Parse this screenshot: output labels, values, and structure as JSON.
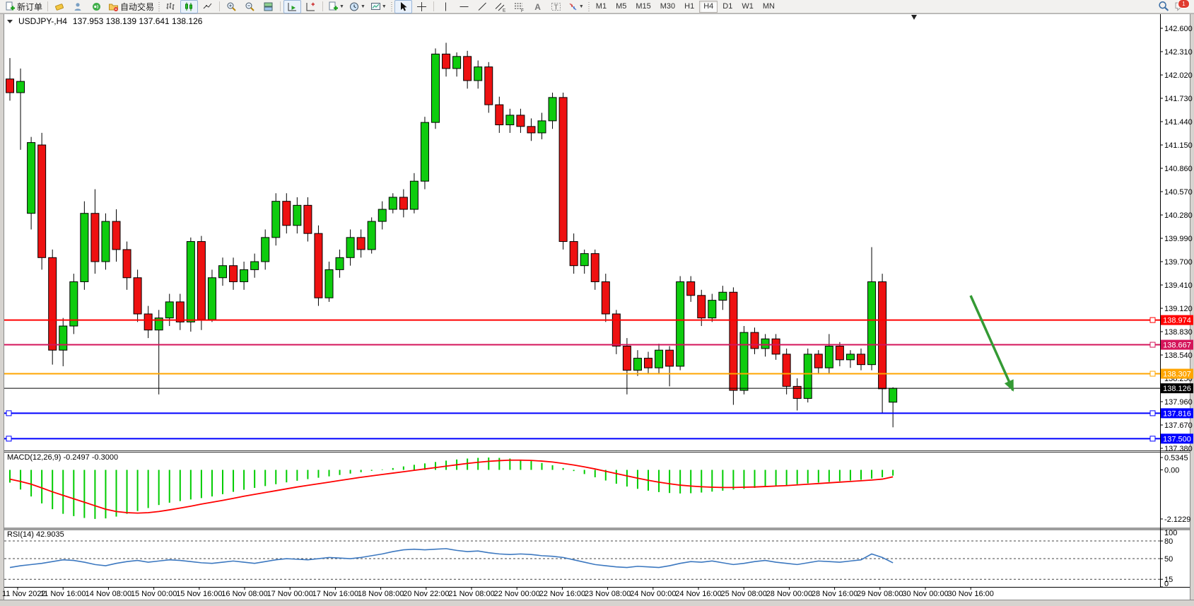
{
  "toolbar": {
    "new_order_label": "新订单",
    "auto_trading_label": "自动交易",
    "timeframes": [
      "M1",
      "M5",
      "M15",
      "M30",
      "H1",
      "H4",
      "D1",
      "W1",
      "MN"
    ],
    "active_timeframe": "H4",
    "notification_count": "1",
    "channel_tool_tag": "E",
    "fibonacci_tool_tag": "F",
    "text_tool_label": "A",
    "label_tool_label": "T"
  },
  "chart": {
    "symbol_period": "USDJPY-,H4",
    "ohlc": "137.953 138.139 137.641 138.126",
    "macd_label": "MACD(12,26,9) -0.2497 -0.3000",
    "rsi_label": "RSI(14) 42.9035"
  },
  "chart_data": {
    "type": "candlestick",
    "symbol": "USDJPY-",
    "timeframe": "H4",
    "visible_price_range": [
      137.38,
      142.6
    ],
    "price_axis_ticks": [
      "142.600",
      "142.310",
      "142.020",
      "141.730",
      "141.440",
      "141.150",
      "140.860",
      "140.570",
      "140.280",
      "139.990",
      "139.700",
      "139.410",
      "139.120",
      "138.830",
      "138.540",
      "138.250",
      "137.960",
      "137.670",
      "137.380"
    ],
    "time_axis_labels": [
      "11 Nov 2022",
      "11 Nov 16:00",
      "14 Nov 08:00",
      "15 Nov 00:00",
      "15 Nov 16:00",
      "16 Nov 08:00",
      "17 Nov 00:00",
      "17 Nov 16:00",
      "18 Nov 08:00",
      "20 Nov 22:00",
      "21 Nov 08:00",
      "22 Nov 00:00",
      "22 Nov 16:00",
      "23 Nov 08:00",
      "24 Nov 00:00",
      "24 Nov 16:00",
      "25 Nov 08:00",
      "28 Nov 00:00",
      "28 Nov 16:00",
      "29 Nov 08:00",
      "30 Nov 00:00",
      "30 Nov 16:00"
    ],
    "candles": [
      [
        141.97,
        142.23,
        141.7,
        141.8
      ],
      [
        141.8,
        142.1,
        141.09,
        141.94
      ],
      [
        140.3,
        141.25,
        140.1,
        141.18
      ],
      [
        141.15,
        141.3,
        139.6,
        139.75
      ],
      [
        139.75,
        139.85,
        138.42,
        138.6
      ],
      [
        138.6,
        139.0,
        138.4,
        138.9
      ],
      [
        138.9,
        139.55,
        138.8,
        139.45
      ],
      [
        139.45,
        140.45,
        139.35,
        140.3
      ],
      [
        140.3,
        140.6,
        139.55,
        139.7
      ],
      [
        139.7,
        140.3,
        139.6,
        140.2
      ],
      [
        140.2,
        140.35,
        139.7,
        139.85
      ],
      [
        139.85,
        139.95,
        139.35,
        139.5
      ],
      [
        139.5,
        139.6,
        138.95,
        139.05
      ],
      [
        139.05,
        139.15,
        138.75,
        138.85
      ],
      [
        138.85,
        139.1,
        138.05,
        139.0
      ],
      [
        139.0,
        139.3,
        138.9,
        139.2
      ],
      [
        139.2,
        139.3,
        138.85,
        138.95
      ],
      [
        138.95,
        140.0,
        138.83,
        139.95
      ],
      [
        139.95,
        140.02,
        138.85,
        138.98
      ],
      [
        138.98,
        139.6,
        138.95,
        139.5
      ],
      [
        139.5,
        139.75,
        139.4,
        139.65
      ],
      [
        139.65,
        139.75,
        139.35,
        139.45
      ],
      [
        139.45,
        139.7,
        139.35,
        139.6
      ],
      [
        139.6,
        139.8,
        139.5,
        139.7
      ],
      [
        139.7,
        140.1,
        139.6,
        140.0
      ],
      [
        140.0,
        140.55,
        139.9,
        140.45
      ],
      [
        140.45,
        140.55,
        140.05,
        140.15
      ],
      [
        140.15,
        140.5,
        140.05,
        140.4
      ],
      [
        140.4,
        140.5,
        139.95,
        140.05
      ],
      [
        140.05,
        140.15,
        139.15,
        139.25
      ],
      [
        139.25,
        139.7,
        139.2,
        139.6
      ],
      [
        139.6,
        139.85,
        139.5,
        139.75
      ],
      [
        139.75,
        140.1,
        139.65,
        140.0
      ],
      [
        140.0,
        140.1,
        139.75,
        139.85
      ],
      [
        139.85,
        140.25,
        139.8,
        140.2
      ],
      [
        140.2,
        140.45,
        140.1,
        140.35
      ],
      [
        140.35,
        140.55,
        140.3,
        140.5
      ],
      [
        140.5,
        140.6,
        140.25,
        140.35
      ],
      [
        140.35,
        140.8,
        140.3,
        140.7
      ],
      [
        140.7,
        141.5,
        140.6,
        141.43
      ],
      [
        141.43,
        142.35,
        141.35,
        142.28
      ],
      [
        142.28,
        142.42,
        142.0,
        142.1
      ],
      [
        142.1,
        142.3,
        142.0,
        142.25
      ],
      [
        142.25,
        142.32,
        141.85,
        141.95
      ],
      [
        141.95,
        142.2,
        141.85,
        142.12
      ],
      [
        142.12,
        142.18,
        141.55,
        141.65
      ],
      [
        141.65,
        141.75,
        141.3,
        141.4
      ],
      [
        141.4,
        141.6,
        141.3,
        141.52
      ],
      [
        141.52,
        141.6,
        141.3,
        141.38
      ],
      [
        141.38,
        141.48,
        141.2,
        141.3
      ],
      [
        141.3,
        141.55,
        141.22,
        141.45
      ],
      [
        141.45,
        141.8,
        141.35,
        141.74
      ],
      [
        141.74,
        141.8,
        139.85,
        139.95
      ],
      [
        139.95,
        140.05,
        139.55,
        139.65
      ],
      [
        139.65,
        139.85,
        139.55,
        139.8
      ],
      [
        139.8,
        139.85,
        139.35,
        139.45
      ],
      [
        139.45,
        139.55,
        138.95,
        139.05
      ],
      [
        139.05,
        139.1,
        138.55,
        138.65
      ],
      [
        138.65,
        138.75,
        138.05,
        138.35
      ],
      [
        138.35,
        138.6,
        138.28,
        138.5
      ],
      [
        138.5,
        138.58,
        138.3,
        138.38
      ],
      [
        138.38,
        138.68,
        138.3,
        138.6
      ],
      [
        138.6,
        138.65,
        138.15,
        138.4
      ],
      [
        138.4,
        139.52,
        138.35,
        139.45
      ],
      [
        139.45,
        139.52,
        139.2,
        139.28
      ],
      [
        139.28,
        139.35,
        138.9,
        139.0
      ],
      [
        139.0,
        139.3,
        138.95,
        139.22
      ],
      [
        139.22,
        139.4,
        139.1,
        139.32
      ],
      [
        139.32,
        139.38,
        137.92,
        138.1
      ],
      [
        138.1,
        138.9,
        138.05,
        138.82
      ],
      [
        138.82,
        138.88,
        138.55,
        138.62
      ],
      [
        138.62,
        138.8,
        138.52,
        138.74
      ],
      [
        138.74,
        138.8,
        138.48,
        138.55
      ],
      [
        138.55,
        138.62,
        138.05,
        138.15
      ],
      [
        138.15,
        138.25,
        137.85,
        138.0
      ],
      [
        138.0,
        138.62,
        137.95,
        138.55
      ],
      [
        138.55,
        138.6,
        138.3,
        138.38
      ],
      [
        138.38,
        138.8,
        138.3,
        138.65
      ],
      [
        138.65,
        138.7,
        138.4,
        138.48
      ],
      [
        138.48,
        138.6,
        138.38,
        138.55
      ],
      [
        138.55,
        138.62,
        138.35,
        138.42
      ],
      [
        138.42,
        139.88,
        138.35,
        139.45
      ],
      [
        139.45,
        139.55,
        137.82,
        138.12
      ],
      [
        137.953,
        138.139,
        137.641,
        138.126
      ]
    ],
    "price_lines": [
      {
        "price": "138.974",
        "value": 138.974,
        "color": "#ff0000",
        "style": "level"
      },
      {
        "price": "138.667",
        "value": 138.667,
        "color": "#d4145a",
        "style": "level"
      },
      {
        "price": "138.307",
        "value": 138.307,
        "color": "#ffa500",
        "style": "level"
      },
      {
        "price": "138.126",
        "value": 138.126,
        "color": "#000000",
        "style": "current"
      },
      {
        "price": "137.816",
        "value": 137.816,
        "color": "#0000ff",
        "style": "level"
      },
      {
        "price": "137.500",
        "value": 137.5,
        "color": "#0000ff",
        "style": "level"
      }
    ],
    "colors": {
      "bull": "#0ecc0e",
      "bear": "#ee1111",
      "wick": "#000000",
      "macd_hist": "#00cc00",
      "macd_signal": "#ff0000",
      "rsi": "#3c78c0",
      "annotation": "#349a34"
    },
    "indicators": [
      {
        "name": "MACD",
        "params": "12,26,9",
        "current_values": "-0.2497 -0.3000",
        "range": [
          -2.1229,
          0.5345
        ],
        "axis_ticks": [
          {
            "label": "0.5345",
            "value": 0.5345
          },
          {
            "label": "0.00",
            "value": 0
          },
          {
            "label": "-2.1229",
            "value": -2.1229
          }
        ],
        "histogram": [
          -0.55,
          -0.85,
          -1.15,
          -1.45,
          -1.7,
          -1.9,
          -2.0,
          -2.08,
          -2.12,
          -2.1,
          -2.02,
          -1.9,
          -1.78,
          -1.65,
          -1.52,
          -1.42,
          -1.35,
          -1.28,
          -1.22,
          -1.15,
          -1.05,
          -0.95,
          -0.86,
          -0.78,
          -0.7,
          -0.62,
          -0.54,
          -0.47,
          -0.4,
          -0.34,
          -0.28,
          -0.22,
          -0.16,
          -0.1,
          -0.04,
          0.02,
          0.08,
          0.15,
          0.22,
          0.28,
          0.34,
          0.4,
          0.45,
          0.49,
          0.52,
          0.5345,
          0.52,
          0.49,
          0.44,
          0.38,
          0.3,
          0.2,
          0.08,
          -0.05,
          -0.18,
          -0.32,
          -0.46,
          -0.6,
          -0.72,
          -0.82,
          -0.9,
          -0.96,
          -1.0,
          -1.02,
          -1.01,
          -0.98,
          -0.94,
          -0.9,
          -0.86,
          -0.82,
          -0.78,
          -0.74,
          -0.7,
          -0.66,
          -0.62,
          -0.58,
          -0.55,
          -0.52,
          -0.49,
          -0.46,
          -0.43,
          -0.38,
          -0.32,
          -0.2497
        ],
        "signal": [
          -0.4,
          -0.5,
          -0.62,
          -0.78,
          -0.95,
          -1.1,
          -1.25,
          -1.4,
          -1.55,
          -1.7,
          -1.8,
          -1.85,
          -1.87,
          -1.85,
          -1.8,
          -1.73,
          -1.65,
          -1.57,
          -1.48,
          -1.4,
          -1.32,
          -1.23,
          -1.14,
          -1.06,
          -0.98,
          -0.9,
          -0.82,
          -0.74,
          -0.67,
          -0.6,
          -0.53,
          -0.46,
          -0.39,
          -0.32,
          -0.26,
          -0.2,
          -0.14,
          -0.08,
          -0.02,
          0.04,
          0.1,
          0.16,
          0.22,
          0.28,
          0.33,
          0.37,
          0.4,
          0.42,
          0.42,
          0.41,
          0.38,
          0.34,
          0.28,
          0.21,
          0.13,
          0.04,
          -0.06,
          -0.16,
          -0.26,
          -0.36,
          -0.45,
          -0.53,
          -0.6,
          -0.66,
          -0.7,
          -0.73,
          -0.75,
          -0.76,
          -0.76,
          -0.75,
          -0.74,
          -0.72,
          -0.7,
          -0.68,
          -0.65,
          -0.62,
          -0.59,
          -0.56,
          -0.53,
          -0.5,
          -0.47,
          -0.44,
          -0.4,
          -0.3
        ]
      },
      {
        "name": "RSI",
        "params": "14",
        "current_value": "42.9035",
        "range": [
          0,
          100
        ],
        "axis_ticks": [
          {
            "label": "100",
            "value": 100
          },
          {
            "label": "80",
            "value": 80
          },
          {
            "label": "50",
            "value": 50
          },
          {
            "label": "15",
            "value": 15
          },
          {
            "label": "0",
            "value": 0
          }
        ],
        "levels": [
          80,
          50,
          15
        ],
        "values": [
          35,
          38,
          40,
          42,
          45,
          48,
          47,
          44,
          40,
          38,
          42,
          45,
          47,
          44,
          46,
          48,
          47,
          45,
          43,
          42,
          44,
          46,
          44,
          42,
          45,
          48,
          50,
          49,
          48,
          50,
          52,
          51,
          50,
          52,
          55,
          58,
          62,
          65,
          66,
          65,
          66,
          67,
          64,
          62,
          63,
          60,
          58,
          57,
          58,
          57,
          55,
          54,
          52,
          48,
          44,
          40,
          38,
          36,
          35,
          37,
          36,
          35,
          38,
          42,
          45,
          44,
          46,
          43,
          40,
          42,
          45,
          47,
          44,
          42,
          40,
          43,
          46,
          45,
          44,
          46,
          48,
          58,
          52,
          42.9
        ]
      }
    ],
    "annotation_arrow": {
      "from": [
        1373,
        418
      ],
      "to": [
        1433,
        552
      ]
    }
  }
}
